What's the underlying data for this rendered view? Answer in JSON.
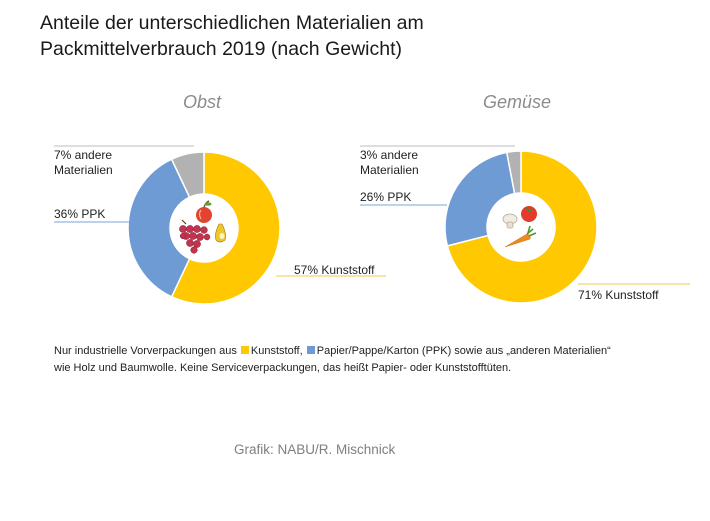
{
  "header": {
    "title_line1": "Anteile der unterschiedlichen Materialien am",
    "title_line2": "Packmittelverbrauch 2019 (nach Gewicht)"
  },
  "colors": {
    "kunststoff": "#FFC800",
    "ppk": "#6F9BD4",
    "andere": "#B2B2B2",
    "leader": "#F2C94C",
    "leader_ppk": "#7BA3D8",
    "leader_gray": "#BDBDBD"
  },
  "chart_data": [
    {
      "type": "pie",
      "variant": "donut",
      "title": "Obst",
      "categories": [
        "Kunststoff",
        "PPK",
        "andere Materialien"
      ],
      "values": [
        57,
        36,
        7
      ],
      "labels": {
        "kunststoff": "57% Kunststoff",
        "ppk": "36% PPK",
        "andere_line1": "7% andere",
        "andere_line2": "Materialien"
      },
      "center_icon": "fruit-icon"
    },
    {
      "type": "pie",
      "variant": "donut",
      "title": "Gemüse",
      "categories": [
        "Kunststoff",
        "PPK",
        "andere Materialien"
      ],
      "values": [
        71,
        26,
        3
      ],
      "labels": {
        "kunststoff": "71% Kunststoff",
        "ppk": "26% PPK",
        "andere_line1": "3% andere",
        "andere_line2": "Materialien"
      },
      "center_icon": "vegetable-icon"
    }
  ],
  "legend": {
    "part1": "Nur industrielle Vorverpackungen aus",
    "kunststoff": "Kunststoff,",
    "ppk": "Papier/Pappe/Karton (PPK) sowie aus „anderen Materialien“",
    "line2": "wie Holz und Baumwolle. Keine Serviceverpackungen, das heißt Papier- oder Kunststofftüten."
  },
  "credit": "Grafik: NABU/R. Mischnick"
}
